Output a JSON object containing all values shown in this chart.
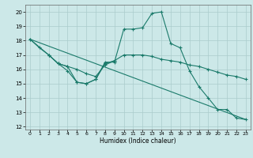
{
  "xlabel": "Humidex (Indice chaleur)",
  "bg_color": "#cce8e8",
  "grid_color": "#aacccc",
  "line_color": "#1a7a6a",
  "xlim": [
    -0.5,
    23.5
  ],
  "ylim": [
    11.8,
    20.5
  ],
  "yticks": [
    12,
    13,
    14,
    15,
    16,
    17,
    18,
    19,
    20
  ],
  "xticks": [
    0,
    1,
    2,
    3,
    4,
    5,
    6,
    7,
    8,
    9,
    10,
    11,
    12,
    13,
    14,
    15,
    16,
    17,
    18,
    19,
    20,
    21,
    22,
    23
  ],
  "line1_x": [
    0,
    1,
    2,
    3,
    4,
    5,
    6,
    7,
    8,
    9,
    10,
    11,
    12,
    13,
    14,
    15,
    16,
    17,
    18,
    19,
    20,
    21,
    22,
    23
  ],
  "line1_y": [
    18.1,
    17.5,
    17.0,
    16.4,
    15.9,
    15.1,
    15.0,
    15.3,
    16.5,
    16.5,
    18.8,
    18.8,
    18.9,
    19.9,
    20.0,
    17.8,
    17.5,
    15.9,
    14.8,
    14.0,
    13.2,
    13.2,
    12.6,
    12.5
  ],
  "line2_x": [
    0,
    23
  ],
  "line2_y": [
    18.1,
    12.5
  ],
  "line3_x": [
    0,
    2,
    3,
    4,
    5,
    6,
    7,
    8,
    9,
    10,
    11,
    12,
    13,
    14,
    15,
    16,
    17,
    18,
    19,
    20,
    21,
    22,
    23
  ],
  "line3_y": [
    18.1,
    17.0,
    16.4,
    16.2,
    16.0,
    15.7,
    15.5,
    16.3,
    16.6,
    17.0,
    17.0,
    17.0,
    16.9,
    16.7,
    16.6,
    16.5,
    16.3,
    16.2,
    16.0,
    15.8,
    15.6,
    15.5,
    15.3
  ],
  "line4_x": [
    2,
    3,
    4,
    5,
    6,
    7,
    8,
    9
  ],
  "line4_y": [
    17.0,
    16.4,
    16.2,
    15.1,
    15.0,
    15.3,
    16.4,
    16.6
  ]
}
